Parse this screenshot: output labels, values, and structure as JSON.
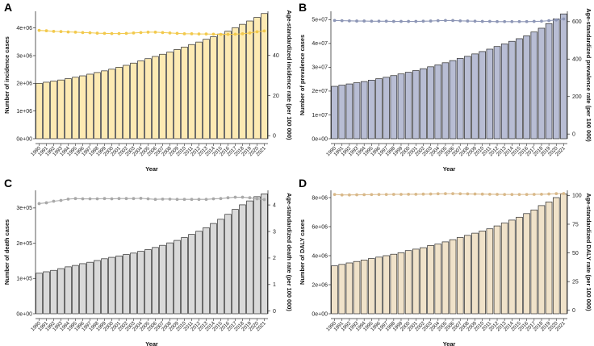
{
  "figure": {
    "background": "#ffffff"
  },
  "chart_data": [
    {
      "panel_label": "A",
      "type": "bar+line",
      "categories": [
        "1990",
        "1991",
        "1992",
        "1993",
        "1994",
        "1995",
        "1996",
        "1997",
        "1998",
        "1999",
        "2000",
        "2001",
        "2002",
        "2003",
        "2004",
        "2005",
        "2006",
        "2007",
        "2008",
        "2009",
        "2010",
        "2011",
        "2012",
        "2013",
        "2014",
        "2015",
        "2016",
        "2017",
        "2018",
        "2019",
        "2020",
        "2021"
      ],
      "values": [
        2000000,
        2040000,
        2080000,
        2120000,
        2170000,
        2220000,
        2270000,
        2330000,
        2390000,
        2450000,
        2510000,
        2580000,
        2650000,
        2730000,
        2810000,
        2890000,
        2970000,
        3050000,
        3130000,
        3220000,
        3310000,
        3400000,
        3490000,
        3590000,
        3680000,
        3780000,
        3880000,
        4010000,
        4130000,
        4250000,
        4380000,
        4520000
      ],
      "line_values": [
        52.5,
        52.3,
        52.0,
        51.9,
        51.7,
        51.6,
        51.4,
        51.3,
        51.1,
        51.0,
        50.9,
        50.9,
        51.0,
        51.2,
        51.4,
        51.6,
        51.6,
        51.4,
        51.2,
        51.0,
        50.8,
        50.8,
        50.7,
        50.7,
        50.6,
        50.5,
        50.5,
        50.6,
        50.8,
        51.2,
        51.8,
        52.2
      ],
      "ylim": [
        0,
        4600000
      ],
      "y2lim": [
        -1.5,
        62
      ],
      "yticks": [
        0,
        1000000,
        2000000,
        3000000,
        4000000
      ],
      "ytick_labels": [
        "0e+00",
        "1e+06",
        "2e+06",
        "3e+06",
        "4e+06"
      ],
      "y2ticks": [
        0,
        20,
        40
      ],
      "y2tick_labels": [
        "0",
        "20",
        "40"
      ],
      "xlabel": "Year",
      "ylabel": "Number of incidence cases",
      "y2label": "Age-standardized incidence rate (per 100 000)",
      "bar_color": "#fdeab3",
      "line_color": "#f2c94c"
    },
    {
      "panel_label": "B",
      "type": "bar+line",
      "categories": [
        "1990",
        "1991",
        "1992",
        "1993",
        "1994",
        "1995",
        "1996",
        "1997",
        "1998",
        "1999",
        "2000",
        "2001",
        "2002",
        "2003",
        "2004",
        "2005",
        "2006",
        "2007",
        "2008",
        "2009",
        "2010",
        "2011",
        "2012",
        "2013",
        "2014",
        "2015",
        "2016",
        "2017",
        "2018",
        "2019",
        "2020",
        "2021"
      ],
      "values": [
        22000000,
        22500000,
        23000000,
        23500000,
        24000000,
        24600000,
        25200000,
        25800000,
        26500000,
        27200000,
        27900000,
        28600000,
        29400000,
        30200000,
        31000000,
        31900000,
        32800000,
        33700000,
        34600000,
        35600000,
        36600000,
        37600000,
        38700000,
        39800000,
        40900000,
        42000000,
        43200000,
        44800000,
        46400000,
        48300000,
        50300000,
        52400000
      ],
      "line_values": [
        606,
        605,
        604,
        603,
        603,
        602,
        602,
        602,
        601,
        601,
        601,
        601,
        602,
        603,
        605,
        606,
        606,
        604,
        603,
        602,
        601,
        601,
        600,
        600,
        600,
        600,
        600,
        601,
        602,
        605,
        609,
        614
      ],
      "ylim": [
        0,
        53500000
      ],
      "y2lim": [
        -25,
        655
      ],
      "yticks": [
        0,
        10000000,
        20000000,
        30000000,
        40000000,
        50000000
      ],
      "ytick_labels": [
        "0e+00",
        "1e+07",
        "2e+07",
        "3e+07",
        "4e+07",
        "5e+07"
      ],
      "y2ticks": [
        0,
        200,
        400,
        600
      ],
      "y2tick_labels": [
        "0",
        "200",
        "400",
        "600"
      ],
      "xlabel": "Year",
      "ylabel": "Number of prevalence cases",
      "y2label": "Age-standardized prevalence rate (per 100 000)",
      "bar_color": "#b8bdd4",
      "line_color": "#8d96b6"
    },
    {
      "panel_label": "C",
      "type": "bar+line",
      "categories": [
        "1990",
        "1991",
        "1992",
        "1993",
        "1994",
        "1995",
        "1996",
        "1997",
        "1998",
        "1999",
        "2000",
        "2001",
        "2002",
        "2003",
        "2004",
        "2005",
        "2006",
        "2007",
        "2008",
        "2009",
        "2010",
        "2011",
        "2012",
        "2013",
        "2014",
        "2015",
        "2016",
        "2017",
        "2018",
        "2019",
        "2020",
        "2021"
      ],
      "values": [
        115000,
        119000,
        123000,
        128000,
        133000,
        137000,
        142000,
        146000,
        151000,
        156000,
        160000,
        164000,
        168000,
        172000,
        177000,
        182000,
        188000,
        194000,
        201000,
        208000,
        216000,
        225000,
        234000,
        244000,
        256000,
        268000,
        282000,
        296000,
        309000,
        320000,
        332000,
        340000
      ],
      "line_values": [
        4.05,
        4.08,
        4.14,
        4.17,
        4.22,
        4.24,
        4.23,
        4.23,
        4.23,
        4.24,
        4.23,
        4.24,
        4.24,
        4.24,
        4.25,
        4.23,
        4.21,
        4.22,
        4.22,
        4.21,
        4.21,
        4.21,
        4.21,
        4.21,
        4.23,
        4.24,
        4.27,
        4.29,
        4.29,
        4.27,
        4.23,
        4.2
      ],
      "ylim": [
        0,
        350000
      ],
      "y2lim": [
        -0.1,
        4.55
      ],
      "yticks": [
        0,
        100000,
        200000,
        300000
      ],
      "ytick_labels": [
        "0e+00",
        "1e+05",
        "2e+05",
        "3e+05"
      ],
      "y2ticks": [
        0,
        1,
        2,
        3,
        4
      ],
      "y2tick_labels": [
        "0",
        "1",
        "2",
        "3",
        "4"
      ],
      "xlabel": "Year",
      "ylabel": "Number of death cases",
      "y2label": "Age-standardized death rate (per 100 000)",
      "bar_color": "#d9d9d9",
      "line_color": "#a9a9a9"
    },
    {
      "panel_label": "D",
      "type": "bar+line",
      "categories": [
        "1990",
        "1991",
        "1992",
        "1993",
        "1994",
        "1995",
        "1996",
        "1997",
        "1998",
        "1999",
        "2000",
        "2001",
        "2002",
        "2003",
        "2004",
        "2005",
        "2006",
        "2007",
        "2008",
        "2009",
        "2010",
        "2011",
        "2012",
        "2013",
        "2014",
        "2015",
        "2016",
        "2017",
        "2018",
        "2019",
        "2020",
        "2021"
      ],
      "values": [
        3300000,
        3400000,
        3500000,
        3600000,
        3700000,
        3800000,
        3900000,
        4000000,
        4100000,
        4200000,
        4350000,
        4450000,
        4550000,
        4700000,
        4800000,
        4950000,
        5100000,
        5250000,
        5400000,
        5550000,
        5700000,
        5850000,
        6050000,
        6250000,
        6450000,
        6650000,
        6900000,
        7150000,
        7450000,
        7700000,
        8000000,
        8250000
      ],
      "line_values": [
        100.9,
        100.5,
        100.5,
        100.6,
        100.7,
        100.8,
        100.9,
        100.9,
        101.0,
        101.0,
        101.1,
        101.1,
        101.2,
        101.3,
        101.5,
        101.6,
        101.6,
        101.5,
        101.4,
        101.3,
        101.2,
        101.1,
        101.0,
        100.9,
        100.9,
        100.9,
        100.9,
        101.0,
        101.1,
        101.3,
        101.6,
        101.7
      ],
      "ylim": [
        0,
        8500000
      ],
      "y2lim": [
        -3,
        104.5
      ],
      "yticks": [
        0,
        2000000,
        4000000,
        6000000,
        8000000
      ],
      "ytick_labels": [
        "0e+00",
        "2e+06",
        "4e+06",
        "6e+06",
        "8e+06"
      ],
      "y2ticks": [
        0,
        25,
        50,
        75,
        100
      ],
      "y2tick_labels": [
        "0",
        "25",
        "50",
        "75",
        "100"
      ],
      "xlabel": "Year",
      "ylabel": "Number of DALY cases",
      "y2label": "Age-standardized DALY rate (per 100 000)",
      "bar_color": "#f0e2c9",
      "line_color": "#d9b98a"
    }
  ]
}
